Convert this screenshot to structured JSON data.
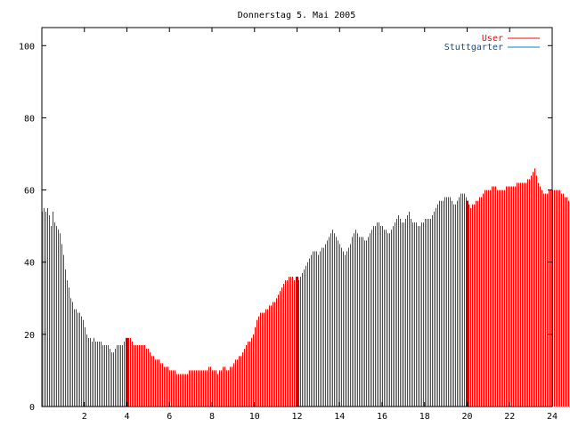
{
  "chart_data": {
    "type": "bar",
    "title": "Donnerstag 5. Mai 2005",
    "xlim": [
      0,
      24
    ],
    "ylim": [
      0,
      105
    ],
    "xticks": [
      2,
      4,
      6,
      8,
      10,
      12,
      14,
      16,
      18,
      20,
      22,
      24
    ],
    "yticks": [
      0,
      20,
      40,
      60,
      80,
      100
    ],
    "grid": false,
    "legend": "top-right",
    "colors": {
      "User": "#ff0000",
      "Stuttgarter": "#0080c0",
      "marker": "#cc0000"
    },
    "series": [
      {
        "name": "User",
        "step_minutes": 5,
        "values": [
          54,
          55,
          54,
          55,
          53,
          50,
          54,
          51,
          50,
          49,
          48,
          45,
          42,
          38,
          35,
          33,
          30,
          29,
          27,
          27,
          26,
          26,
          25,
          24,
          22,
          20,
          19,
          19,
          18,
          19,
          18,
          18,
          18,
          18,
          17,
          17,
          17,
          17,
          16,
          15,
          15,
          16,
          17,
          17,
          17,
          17,
          18,
          18,
          19,
          19,
          19,
          18,
          17,
          17,
          17,
          17,
          17,
          17,
          17,
          16,
          16,
          15,
          14,
          14,
          13,
          13,
          13,
          12,
          12,
          11,
          11,
          11,
          10,
          10,
          10,
          10,
          9,
          9,
          9,
          9,
          9,
          9,
          9,
          10,
          10,
          10,
          10,
          10,
          10,
          10,
          10,
          10,
          10,
          10,
          11,
          11,
          10,
          10,
          10,
          9,
          10,
          10,
          11,
          11,
          10,
          10,
          11,
          11,
          12,
          13,
          13,
          14,
          14,
          15,
          16,
          17,
          18,
          18,
          19,
          20,
          22,
          24,
          25,
          26,
          26,
          26,
          27,
          27,
          28,
          28,
          29,
          29,
          30,
          31,
          32,
          33,
          34,
          35,
          35,
          36,
          36,
          36,
          35,
          36,
          36,
          35,
          36,
          37,
          38,
          39,
          40,
          41,
          42,
          43,
          43,
          43,
          42,
          43,
          44,
          44,
          45,
          46,
          47,
          48,
          49,
          48,
          47,
          46,
          45,
          44,
          43,
          42,
          43,
          44,
          45,
          47,
          48,
          49,
          48,
          47,
          47,
          47,
          46,
          46,
          47,
          48,
          49,
          50,
          50,
          51,
          51,
          50,
          50,
          49,
          49,
          48,
          48,
          49,
          50,
          51,
          52,
          53,
          52,
          51,
          51,
          52,
          53,
          54,
          52,
          51,
          51,
          51,
          50,
          50,
          51,
          51,
          52,
          52,
          52,
          52,
          53,
          54,
          55,
          56,
          57,
          57,
          57,
          58,
          58,
          58,
          58,
          57,
          56,
          56,
          57,
          58,
          59,
          59,
          59,
          58,
          57,
          56,
          55,
          56,
          56,
          57,
          57,
          58,
          58,
          59,
          60,
          60,
          60,
          60,
          61,
          61,
          61,
          60,
          60,
          60,
          60,
          60,
          61,
          61,
          61,
          61,
          61,
          61,
          62,
          62,
          62,
          62,
          62,
          62,
          63,
          63,
          64,
          65,
          66,
          64,
          62,
          61,
          60,
          59,
          59,
          59,
          60,
          60,
          60,
          60,
          60,
          60,
          60,
          59,
          59,
          58,
          58,
          57,
          56,
          55,
          54,
          53,
          52,
          51
        ]
      },
      {
        "name": "Stuttgarter",
        "values": []
      }
    ],
    "markers_hours": [
      4,
      12,
      20
    ]
  }
}
